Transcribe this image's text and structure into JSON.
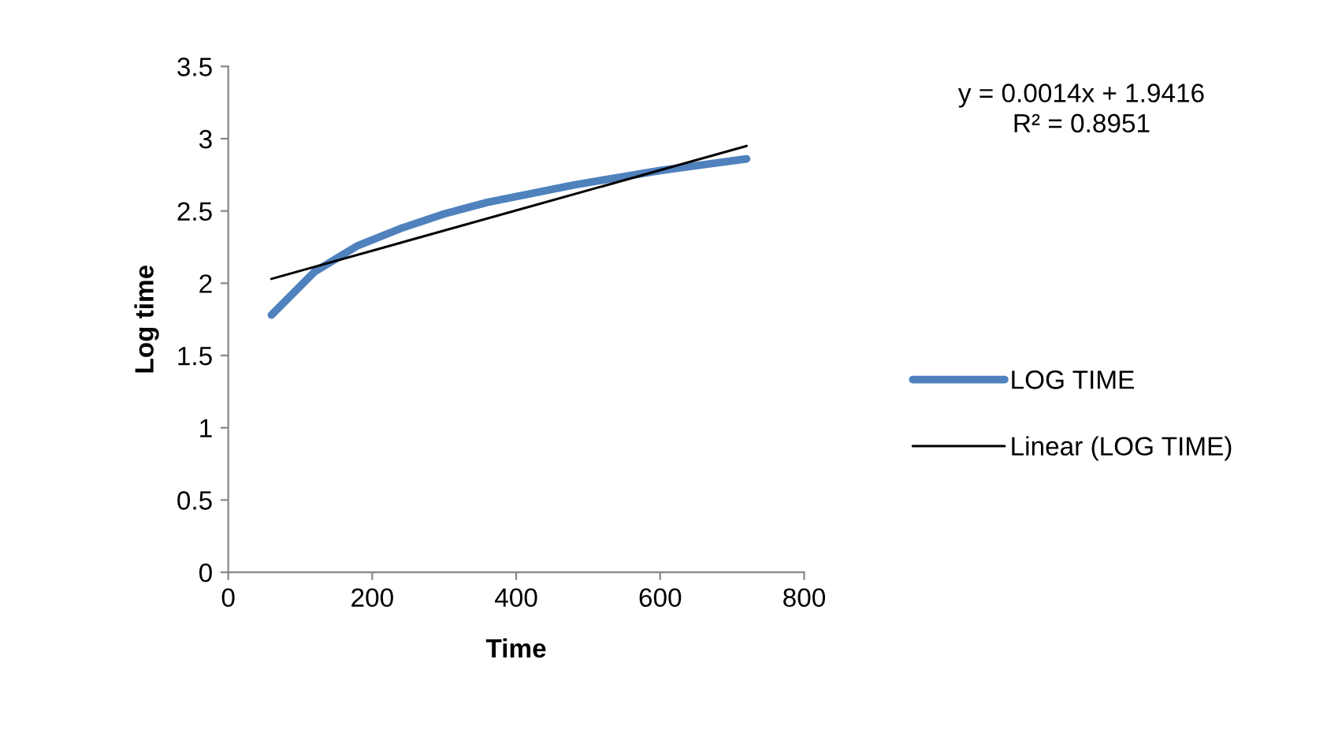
{
  "chart_data": {
    "type": "line",
    "xlabel": "Time",
    "ylabel": "Log time",
    "x": [
      60,
      120,
      180,
      240,
      300,
      360,
      420,
      480,
      540,
      600,
      660,
      720
    ],
    "series": [
      {
        "name": "LOG TIME",
        "color": "#4f81bd",
        "values": [
          1.78,
          2.08,
          2.26,
          2.38,
          2.48,
          2.56,
          2.62,
          2.68,
          2.73,
          2.78,
          2.82,
          2.86
        ]
      },
      {
        "name": "Linear (LOG TIME)",
        "color": "#000000",
        "x": [
          60,
          720
        ],
        "values": [
          2.03,
          2.95
        ]
      }
    ],
    "annotations": [
      "y = 0.0014x + 1.9416\nR² = 0.8951"
    ],
    "xlim": [
      0,
      800
    ],
    "xticks": [
      0,
      200,
      400,
      600,
      800
    ],
    "ylim": [
      0,
      3.5
    ],
    "yticks": [
      0,
      0.5,
      1,
      1.5,
      2,
      2.5,
      3,
      3.5
    ],
    "legend": "right",
    "grid": false,
    "marker": "none",
    "line_style": "solid"
  }
}
